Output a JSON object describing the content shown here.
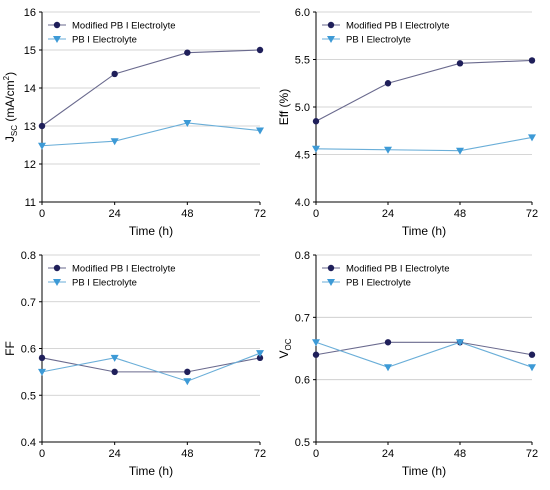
{
  "chart_data": [
    {
      "type": "line",
      "x": [
        0,
        24,
        48,
        72
      ],
      "xlabel": "Time (h)",
      "ylabel": "Jsc (mA/cm2)",
      "ylabel_parts": {
        "main": "J",
        "sub": "SC",
        "unit": " (mA/cm",
        "sup": "2",
        "close": ")"
      },
      "ylim": [
        11,
        16
      ],
      "yticks": [
        11,
        12,
        13,
        14,
        15,
        16
      ],
      "ytick_decimals": 0,
      "grid": true,
      "legend": "top-left",
      "series": [
        {
          "name": "Modified PB I Electrolyte",
          "values": [
            13.0,
            14.37,
            14.93,
            15.0
          ],
          "color": "#6a6a8e",
          "marker": "circle",
          "marker_color": "#1f1f5a"
        },
        {
          "name": "PB I Electrolyte",
          "values": [
            12.48,
            12.6,
            13.08,
            12.88
          ],
          "color": "#6aaed8",
          "marker": "triangle-down",
          "marker_color": "#3d9ad6"
        }
      ]
    },
    {
      "type": "line",
      "x": [
        0,
        24,
        48,
        72
      ],
      "xlabel": "Time (h)",
      "ylabel": "Eff (%)",
      "ylim": [
        4.0,
        6.0
      ],
      "yticks": [
        4.0,
        4.5,
        5.0,
        5.5,
        6.0
      ],
      "ytick_decimals": 1,
      "grid": true,
      "legend": "top-left",
      "series": [
        {
          "name": "Modified PB I Electrolyte",
          "values": [
            4.85,
            5.25,
            5.46,
            5.49
          ],
          "color": "#6a6a8e",
          "marker": "circle",
          "marker_color": "#1f1f5a"
        },
        {
          "name": "PB I Electrolyte",
          "values": [
            4.56,
            4.55,
            4.54,
            4.68
          ],
          "color": "#6aaed8",
          "marker": "triangle-down",
          "marker_color": "#3d9ad6"
        }
      ]
    },
    {
      "type": "line",
      "x": [
        0,
        24,
        48,
        72
      ],
      "xlabel": "Time (h)",
      "ylabel": "FF",
      "ylim": [
        0.4,
        0.8
      ],
      "yticks": [
        0.4,
        0.5,
        0.6,
        0.7,
        0.8
      ],
      "ytick_decimals": 1,
      "grid": true,
      "legend": "top-left",
      "series": [
        {
          "name": "Modified PB I Electrolyte",
          "values": [
            0.58,
            0.55,
            0.55,
            0.58
          ],
          "color": "#6a6a8e",
          "marker": "circle",
          "marker_color": "#1f1f5a"
        },
        {
          "name": "PB I Electrolyte",
          "values": [
            0.55,
            0.58,
            0.53,
            0.59
          ],
          "color": "#6aaed8",
          "marker": "triangle-down",
          "marker_color": "#3d9ad6"
        }
      ]
    },
    {
      "type": "line",
      "x": [
        0,
        24,
        48,
        72
      ],
      "xlabel": "Time (h)",
      "ylabel": "Voc",
      "ylabel_parts": {
        "main": "V",
        "sub": "OC",
        "unit": "",
        "sup": "",
        "close": ""
      },
      "ylim": [
        0.5,
        0.8
      ],
      "yticks": [
        0.5,
        0.6,
        0.7,
        0.8
      ],
      "ytick_decimals": 1,
      "grid": true,
      "legend": "top-left",
      "series": [
        {
          "name": "Modified PB I Electrolyte",
          "values": [
            0.64,
            0.66,
            0.66,
            0.64
          ],
          "color": "#6a6a8e",
          "marker": "circle",
          "marker_color": "#1f1f5a"
        },
        {
          "name": "PB I Electrolyte",
          "values": [
            0.66,
            0.62,
            0.66,
            0.62
          ],
          "color": "#6aaed8",
          "marker": "triangle-down",
          "marker_color": "#3d9ad6"
        }
      ]
    }
  ]
}
